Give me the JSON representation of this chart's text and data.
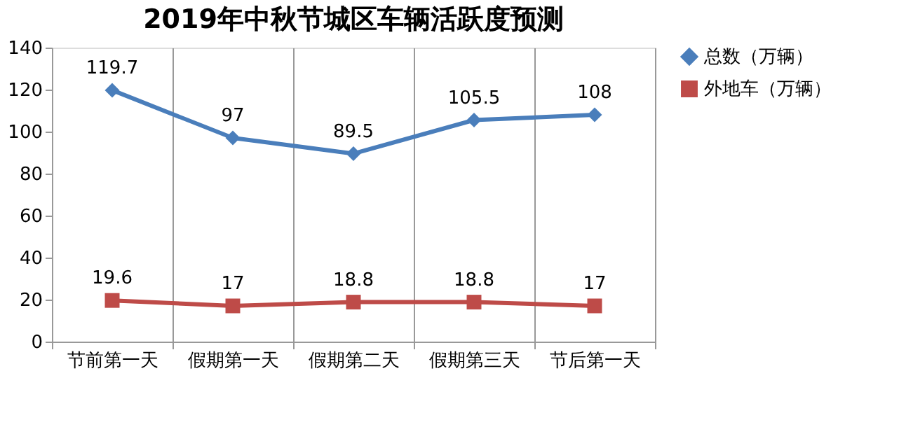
{
  "chart_data": {
    "type": "line",
    "title": "2019年中秋节城区车辆活跃度预测",
    "categories": [
      "节前第一天",
      "假期第一天",
      "假期第二天",
      "假期第三天",
      "节后第一天"
    ],
    "series": [
      {
        "name": "总数（万辆）",
        "color": "#4a7ebb",
        "values": [
          119.7,
          97,
          89.5,
          105.5,
          108
        ],
        "marker": "diamond"
      },
      {
        "name": "外地车（万辆）",
        "color": "#be4b48",
        "values": [
          19.6,
          17,
          18.8,
          18.8,
          17
        ],
        "marker": "square"
      }
    ],
    "ylim": [
      0,
      140
    ],
    "yticks": [
      0,
      20,
      40,
      60,
      80,
      100,
      120,
      140
    ],
    "grid": "x",
    "legend": "right",
    "data_labels": true
  }
}
